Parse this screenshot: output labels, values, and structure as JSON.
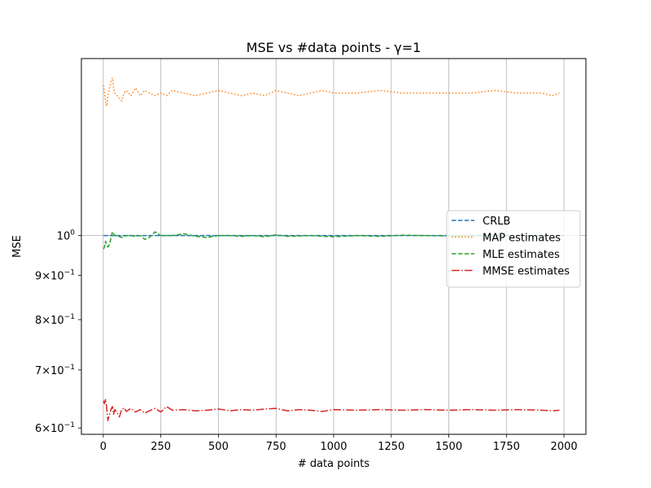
{
  "chart_data": {
    "type": "line",
    "title": "MSE vs #data points - γ=1",
    "xlabel": "# data points",
    "ylabel": "MSE",
    "xlim": [
      -95,
      2095
    ],
    "ylim": [
      0.59,
      1.6
    ],
    "yscale": "log",
    "grid": "vertical",
    "legend_position": "center-right",
    "x_ticks": [
      {
        "value": 0,
        "label": "0"
      },
      {
        "value": 250,
        "label": "250"
      },
      {
        "value": 500,
        "label": "500"
      },
      {
        "value": 750,
        "label": "750"
      },
      {
        "value": 1000,
        "label": "1000"
      },
      {
        "value": 1250,
        "label": "1250"
      },
      {
        "value": 1500,
        "label": "1500"
      },
      {
        "value": 1750,
        "label": "1750"
      },
      {
        "value": 2000,
        "label": "2000"
      }
    ],
    "y_ticks": [
      {
        "value": 1.0,
        "base": "10",
        "exp": "0"
      },
      {
        "value": 0.9,
        "base": "9×10",
        "exp": "−1"
      },
      {
        "value": 0.8,
        "base": "8×10",
        "exp": "−1"
      },
      {
        "value": 0.7,
        "base": "7×10",
        "exp": "−1"
      },
      {
        "value": 0.6,
        "base": "6×10",
        "exp": "−1"
      }
    ],
    "y_gridlines": [
      1.0
    ],
    "series": [
      {
        "name": "CRLB",
        "color": "#1f77b4",
        "style": "dashed",
        "x": [
          1,
          2000
        ],
        "y": [
          1.0,
          1.0
        ]
      },
      {
        "name": "MAP estimates",
        "color": "#ff7f0e",
        "style": "dotted",
        "x": [
          1,
          5,
          10,
          15,
          20,
          25,
          30,
          35,
          40,
          45,
          50,
          60,
          70,
          80,
          90,
          100,
          120,
          140,
          160,
          180,
          200,
          225,
          250,
          275,
          300,
          350,
          400,
          450,
          500,
          550,
          600,
          650,
          700,
          750,
          800,
          850,
          900,
          950,
          1000,
          1100,
          1200,
          1300,
          1400,
          1500,
          1600,
          1700,
          1800,
          1900,
          1950,
          1980
        ],
        "y": [
          1.49,
          1.46,
          1.43,
          1.41,
          1.45,
          1.47,
          1.49,
          1.51,
          1.52,
          1.48,
          1.46,
          1.45,
          1.44,
          1.43,
          1.46,
          1.47,
          1.45,
          1.48,
          1.45,
          1.47,
          1.46,
          1.45,
          1.46,
          1.45,
          1.47,
          1.46,
          1.45,
          1.46,
          1.47,
          1.46,
          1.45,
          1.46,
          1.45,
          1.47,
          1.46,
          1.45,
          1.46,
          1.47,
          1.46,
          1.46,
          1.47,
          1.46,
          1.46,
          1.46,
          1.46,
          1.47,
          1.46,
          1.46,
          1.45,
          1.46
        ]
      },
      {
        "name": "MLE estimates",
        "color": "#2ca02c",
        "style": "dashed",
        "x": [
          1,
          5,
          10,
          15,
          20,
          25,
          30,
          40,
          50,
          60,
          80,
          100,
          120,
          140,
          160,
          180,
          200,
          225,
          250,
          300,
          350,
          400,
          450,
          500,
          550,
          600,
          650,
          700,
          750,
          800,
          900,
          1000,
          1100,
          1200,
          1300,
          1400,
          1500,
          1600,
          1700,
          1800,
          1900,
          1980
        ],
        "y": [
          0.965,
          0.97,
          0.985,
          0.975,
          0.97,
          0.975,
          0.985,
          1.01,
          1.0,
          1.0,
          0.995,
          1.0,
          1.0,
          0.998,
          1.0,
          0.99,
          0.995,
          1.01,
          1.0,
          1.0,
          1.005,
          0.998,
          0.995,
          1.0,
          1.0,
          0.998,
          1.0,
          0.997,
          1.002,
          0.998,
          1.0,
          0.997,
          1.0,
          0.998,
          1.001,
          1.0,
          0.999,
          1.0,
          1.001,
          1.0,
          0.999,
          1.0
        ]
      },
      {
        "name": "MMSE estimates",
        "color": "#d62728",
        "style": "dashdot",
        "x": [
          1,
          5,
          10,
          15,
          20,
          25,
          30,
          35,
          40,
          45,
          50,
          60,
          70,
          80,
          90,
          100,
          120,
          140,
          160,
          180,
          200,
          225,
          250,
          275,
          300,
          350,
          400,
          450,
          500,
          550,
          600,
          650,
          700,
          750,
          800,
          850,
          900,
          950,
          1000,
          1100,
          1200,
          1300,
          1400,
          1500,
          1600,
          1700,
          1800,
          1900,
          1950,
          1980
        ],
        "y": [
          0.645,
          0.64,
          0.648,
          0.632,
          0.612,
          0.62,
          0.625,
          0.632,
          0.635,
          0.622,
          0.63,
          0.625,
          0.618,
          0.63,
          0.633,
          0.627,
          0.632,
          0.626,
          0.63,
          0.624,
          0.628,
          0.632,
          0.626,
          0.635,
          0.629,
          0.63,
          0.628,
          0.629,
          0.631,
          0.628,
          0.63,
          0.629,
          0.631,
          0.632,
          0.628,
          0.63,
          0.629,
          0.627,
          0.63,
          0.629,
          0.63,
          0.629,
          0.63,
          0.629,
          0.63,
          0.629,
          0.63,
          0.629,
          0.628,
          0.629
        ]
      }
    ]
  }
}
